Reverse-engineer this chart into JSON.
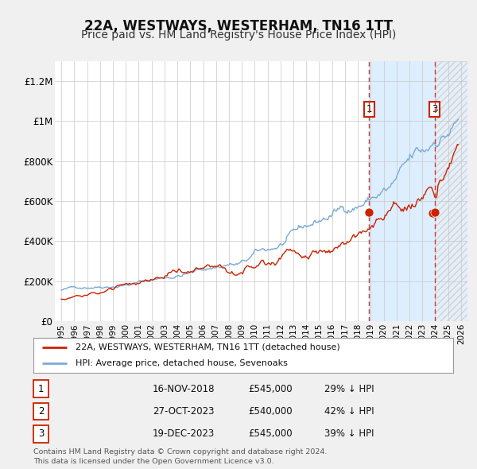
{
  "title": "22A, WESTWAYS, WESTERHAM, TN16 1TT",
  "subtitle": "Price paid vs. HM Land Registry's House Price Index (HPI)",
  "title_fontsize": 12,
  "subtitle_fontsize": 10,
  "xlim": [
    1994.5,
    2026.5
  ],
  "ylim": [
    0,
    1300000
  ],
  "yticks": [
    0,
    200000,
    400000,
    600000,
    800000,
    1000000,
    1200000
  ],
  "ytick_labels": [
    "£0",
    "£200K",
    "£400K",
    "£600K",
    "£800K",
    "£1M",
    "£1.2M"
  ],
  "xticks": [
    1995,
    1996,
    1997,
    1998,
    1999,
    2000,
    2001,
    2002,
    2003,
    2004,
    2005,
    2006,
    2007,
    2008,
    2009,
    2010,
    2011,
    2012,
    2013,
    2014,
    2015,
    2016,
    2017,
    2018,
    2019,
    2020,
    2021,
    2022,
    2023,
    2024,
    2025,
    2026
  ],
  "hpi_color": "#7aaad4",
  "price_color": "#cc2200",
  "vline_color": "#cc3333",
  "highlight_bg": "#ddeeff",
  "hatch_bg": "#e8eef5",
  "sale_points": [
    {
      "year": 2018.88,
      "price": 545000,
      "label": "1"
    },
    {
      "year": 2023.81,
      "price": 540000,
      "label": "2"
    },
    {
      "year": 2023.96,
      "price": 545000,
      "label": "3"
    }
  ],
  "vline_years": [
    2018.88,
    2023.96
  ],
  "hatch_start": 2024.0,
  "label_positions": {
    "1": [
      2018.88,
      1060000
    ],
    "3": [
      2023.96,
      1060000
    ]
  },
  "legend_entries": [
    "22A, WESTWAYS, WESTERHAM, TN16 1TT (detached house)",
    "HPI: Average price, detached house, Sevenoaks"
  ],
  "table_rows": [
    {
      "num": "1",
      "date": "16-NOV-2018",
      "price": "£545,000",
      "hpi": "29% ↓ HPI"
    },
    {
      "num": "2",
      "date": "27-OCT-2023",
      "price": "£540,000",
      "hpi": "42% ↓ HPI"
    },
    {
      "num": "3",
      "date": "19-DEC-2023",
      "price": "£545,000",
      "hpi": "39% ↓ HPI"
    }
  ],
  "footer": "Contains HM Land Registry data © Crown copyright and database right 2024.\nThis data is licensed under the Open Government Licence v3.0.",
  "background_color": "#f0f0f0",
  "plot_bg_color": "#ffffff"
}
